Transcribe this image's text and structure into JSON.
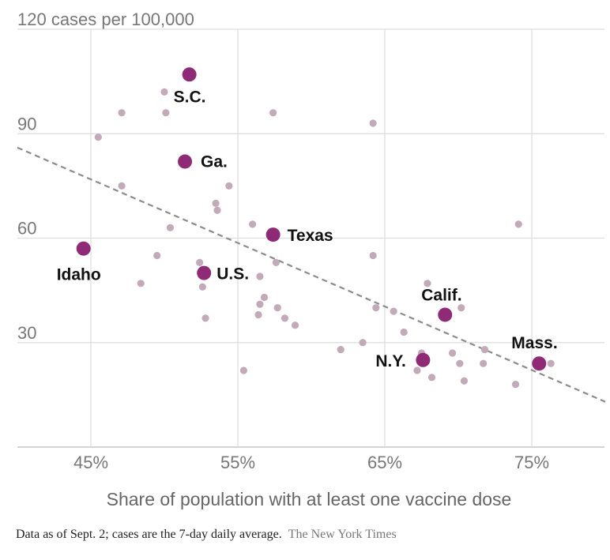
{
  "chart_data": {
    "type": "scatter",
    "xlabel": "Share of population with at least one vaccine dose",
    "ylabel": "cases per 100,000",
    "xlim": [
      40,
      80
    ],
    "ylim": [
      0,
      120
    ],
    "x_ticks": [
      45,
      55,
      65,
      75
    ],
    "x_tick_labels": [
      "45%",
      "55%",
      "65%",
      "75%"
    ],
    "y_ticks": [
      30,
      60,
      90,
      120
    ],
    "y_tick_labels": [
      "30",
      "60",
      "90",
      "120 cases per 100,000"
    ],
    "trend_line": {
      "x": [
        40,
        80
      ],
      "y": [
        86,
        13
      ],
      "style": "dashed"
    },
    "highlight_color": "#8e2a76",
    "other_color": "#c2aab9",
    "highlighted": [
      {
        "label": "S.C.",
        "x": 51.7,
        "y": 107
      },
      {
        "label": "Ga.",
        "x": 51.4,
        "y": 82
      },
      {
        "label": "Texas",
        "x": 57.4,
        "y": 61
      },
      {
        "label": "Idaho",
        "x": 44.5,
        "y": 57
      },
      {
        "label": "U.S.",
        "x": 52.7,
        "y": 50
      },
      {
        "label": "Calif.",
        "x": 69.1,
        "y": 38
      },
      {
        "label": "N.Y.",
        "x": 67.6,
        "y": 25
      },
      {
        "label": "Mass.",
        "x": 75.5,
        "y": 24
      }
    ],
    "others": [
      {
        "x": 45.5,
        "y": 89
      },
      {
        "x": 47.1,
        "y": 96
      },
      {
        "x": 47.1,
        "y": 75
      },
      {
        "x": 48.4,
        "y": 47
      },
      {
        "x": 49.5,
        "y": 55
      },
      {
        "x": 50.0,
        "y": 102
      },
      {
        "x": 50.1,
        "y": 96
      },
      {
        "x": 50.4,
        "y": 63
      },
      {
        "x": 52.4,
        "y": 53
      },
      {
        "x": 52.6,
        "y": 46
      },
      {
        "x": 52.8,
        "y": 37
      },
      {
        "x": 53.5,
        "y": 70
      },
      {
        "x": 53.6,
        "y": 68
      },
      {
        "x": 54.4,
        "y": 75
      },
      {
        "x": 55.4,
        "y": 22
      },
      {
        "x": 56.0,
        "y": 64
      },
      {
        "x": 56.4,
        "y": 38
      },
      {
        "x": 56.5,
        "y": 41
      },
      {
        "x": 56.5,
        "y": 49
      },
      {
        "x": 56.8,
        "y": 43
      },
      {
        "x": 57.4,
        "y": 96
      },
      {
        "x": 57.6,
        "y": 53
      },
      {
        "x": 57.7,
        "y": 40
      },
      {
        "x": 58.2,
        "y": 37
      },
      {
        "x": 58.9,
        "y": 35
      },
      {
        "x": 62.0,
        "y": 28
      },
      {
        "x": 63.5,
        "y": 30
      },
      {
        "x": 64.2,
        "y": 93
      },
      {
        "x": 64.2,
        "y": 55
      },
      {
        "x": 64.4,
        "y": 40
      },
      {
        "x": 65.6,
        "y": 39
      },
      {
        "x": 66.3,
        "y": 33
      },
      {
        "x": 67.2,
        "y": 22
      },
      {
        "x": 67.5,
        "y": 27
      },
      {
        "x": 67.9,
        "y": 47
      },
      {
        "x": 68.2,
        "y": 20
      },
      {
        "x": 69.6,
        "y": 27
      },
      {
        "x": 70.1,
        "y": 24
      },
      {
        "x": 70.2,
        "y": 40
      },
      {
        "x": 70.4,
        "y": 19
      },
      {
        "x": 71.7,
        "y": 24
      },
      {
        "x": 71.8,
        "y": 28
      },
      {
        "x": 73.9,
        "y": 18
      },
      {
        "x": 74.1,
        "y": 64
      },
      {
        "x": 76.3,
        "y": 24
      }
    ]
  },
  "footnote": {
    "note": "Data as of Sept. 2; cases are the 7-day daily average.",
    "credit": "The New York Times"
  }
}
